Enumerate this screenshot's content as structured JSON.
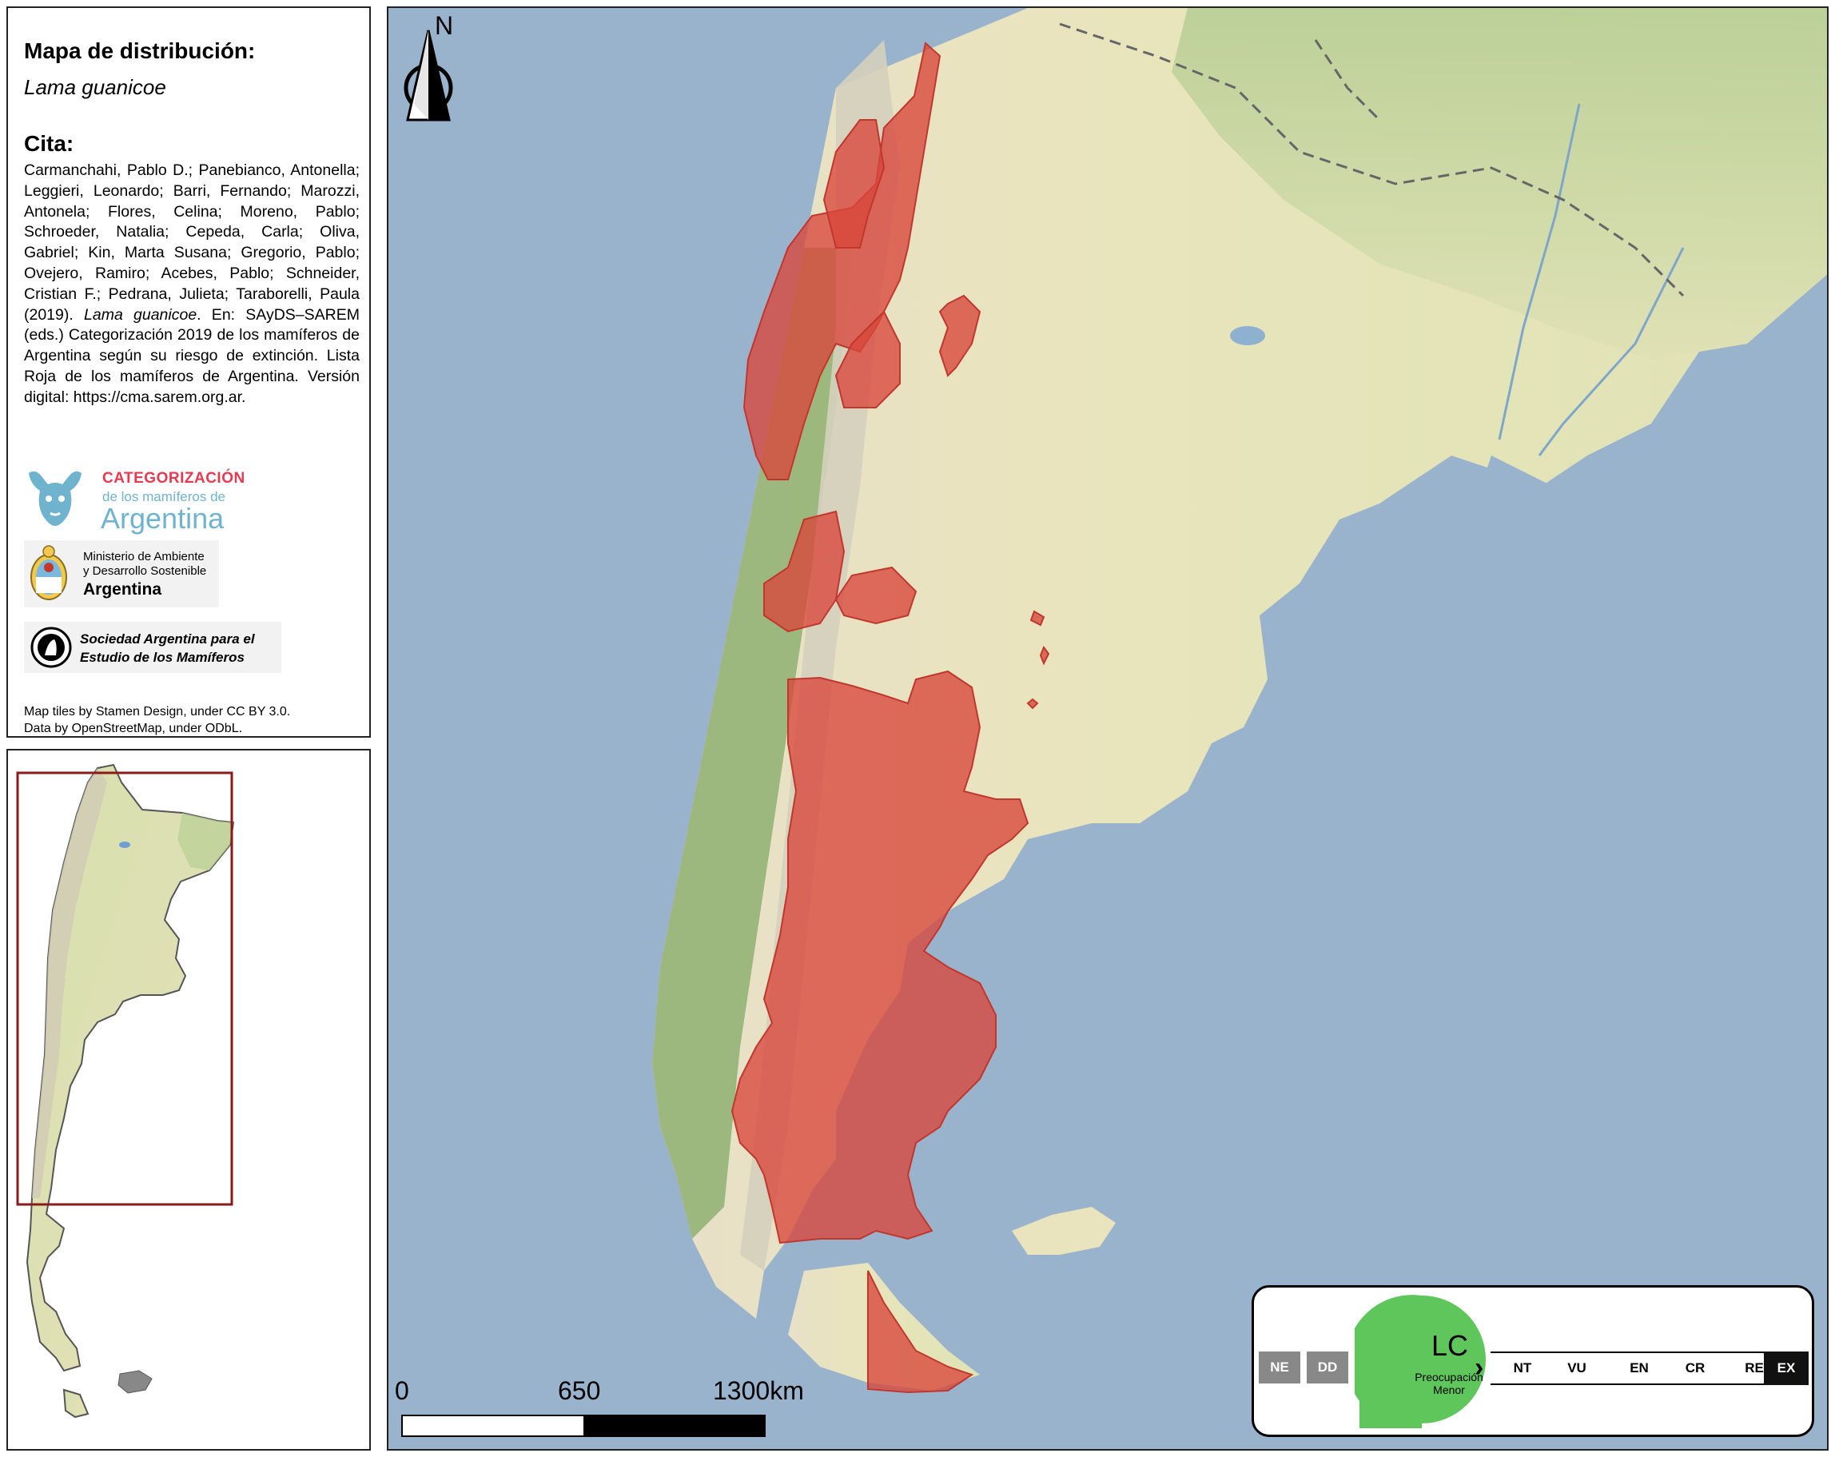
{
  "info": {
    "title": "Mapa de distribución:",
    "species": "Lama guanicoe",
    "citation_heading": "Cita:",
    "citation_part1": "Carmanchahi, Pablo D.; Panebianco, Antonella; Leggieri, Leonardo; Barri, Fernando; Marozzi, Antonela; Flores, Celina; Moreno, Pablo; Schroeder, Natalia; Cepeda, Carla; Oliva, Gabriel; Kin, Marta Susana; Gregorio, Pablo; Ovejero, Ramiro; Acebes, Pablo; Schneider, Cristian F.; Pedrana, Julieta; Taraborelli, Paula (2019).",
    "citation_species": "Lama guanicoe",
    "citation_part2": ". En: SAyDS–SAREM (eds.) Categorización 2019 de los mamíferos de Argentina según su riesgo de extinción. Lista Roja de los mamíferos de Argentina. Versión digital: https://cma.sarem.org.ar.",
    "logo_categorizacion": {
      "line1": "CATEGORIZACIÓN",
      "line2": "de los mamíferos de",
      "line3": "Argentina"
    },
    "logo_ministerio": {
      "line1": "Ministerio de Ambiente",
      "line2": "y Desarrollo Sostenible",
      "line3": "Argentina"
    },
    "logo_sarem": {
      "line1": "Sociedad Argentina para el",
      "line2": "Estudio de los Mamíferos"
    },
    "credits_line1": "Map tiles by Stamen Design, under CC BY 3.0.",
    "credits_line2": "Data by OpenStreetMap, under ODbL."
  },
  "map": {
    "north_label": "N",
    "scale": {
      "label_0": "0",
      "label_mid": "650",
      "label_end": "1300km"
    },
    "colors": {
      "ocean": "#9ab3cc",
      "land": "#e9e4bd",
      "forest": "#9fbe82",
      "range": "#d9473b",
      "inset_frame": "#8b1a1a"
    }
  },
  "legend": {
    "left_boxes": [
      "NE",
      "DD"
    ],
    "current_code": "LC",
    "current_name_line1": "Preocupación",
    "current_name_line2": "Menor",
    "current_color": "#5ec65a",
    "categories": [
      "NT",
      "VU",
      "EN",
      "CR",
      "RE",
      "EX"
    ]
  }
}
